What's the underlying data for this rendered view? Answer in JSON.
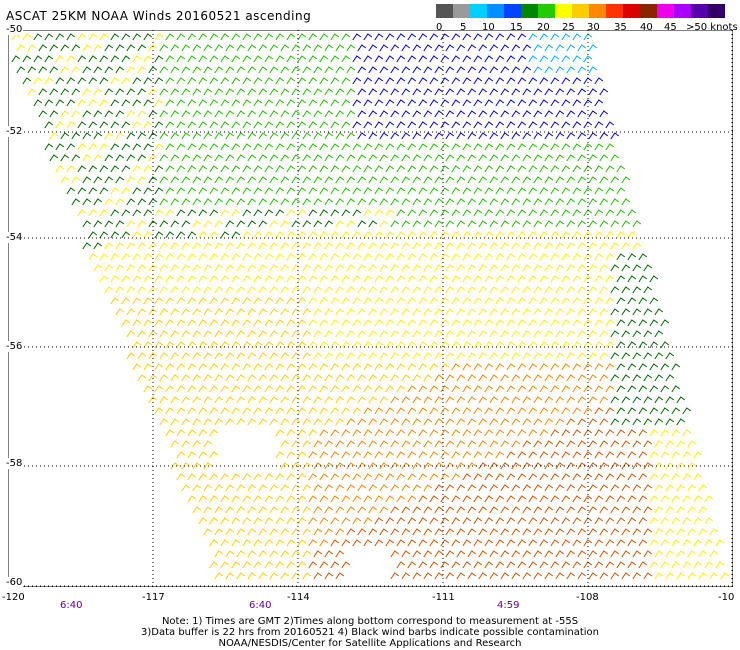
{
  "title": "ASCAT 25KM NOAA Winds 20160521 ascending",
  "legend": {
    "bins": [
      {
        "label": "0",
        "color": "#555555"
      },
      {
        "label": "",
        "color": "#9a9a9a"
      },
      {
        "label": "5",
        "color": "#00b4ff"
      },
      {
        "label": "",
        "color": "#0090ff"
      },
      {
        "label": "10",
        "color": "#0044ff"
      },
      {
        "label": "",
        "color": "#00aa00"
      },
      {
        "label": "15",
        "color": "#22cc00"
      },
      {
        "label": "",
        "color": "#ffff00"
      },
      {
        "label": "20",
        "color": "#ffd000"
      },
      {
        "label": "",
        "color": "#ff9900"
      },
      {
        "label": "25",
        "color": "#ff5500"
      },
      {
        "label": "",
        "color": "#ff0000"
      },
      {
        "label": "30",
        "color": "#cc0000"
      },
      {
        "label": "",
        "color": "#993300"
      },
      {
        "label": "35",
        "color": "#cc00cc"
      },
      {
        "label": "",
        "color": "#9900ff"
      },
      {
        "label": "40",
        "color": "#660099"
      }
    ],
    "tick_labels": [
      "0",
      "5",
      "10",
      "15",
      "20",
      "25",
      "30",
      "35",
      "40",
      "45",
      ">50 knots"
    ]
  },
  "axes": {
    "longitude_labels": [
      "-120",
      "-117",
      "-114",
      "-111",
      "-108",
      "-10"
    ],
    "latitude_labels": [
      "-50",
      "-52",
      "-54",
      "-56",
      "-58",
      "-60"
    ]
  },
  "pass_times": [
    "6:40",
    "6:40",
    "4:59"
  ],
  "notes": [
    "Note: 1) Times are GMT 2)Times along bottom correspond to measurement at -55S",
    "3)Data buffer is 22 hrs from 20160521 4) Black wind barbs indicate possible contamination",
    "NOAA/NESDIS/Center for Satellite Applications and Research"
  ],
  "colors": {
    "barb_dark_green": "#006600",
    "barb_green": "#22bb00",
    "barb_blue": "#0000cc",
    "barb_cyan": "#00aaff",
    "barb_yellow": "#ffee00",
    "barb_gold": "#ffcc00",
    "barb_orange": "#ee8800",
    "barb_dark_orange": "#cc5500",
    "grid": "#000000"
  }
}
